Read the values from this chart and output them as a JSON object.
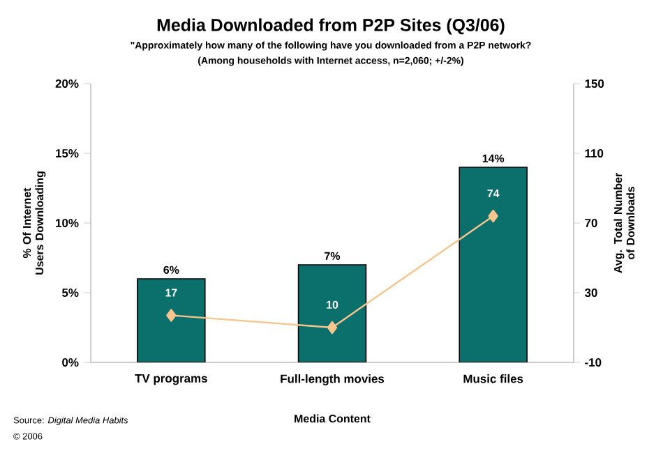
{
  "chart_data": {
    "type": "bar",
    "title": "Media Downloaded from P2P Sites (Q3/06)",
    "subtitle": "\"Approximately how many of the following have you downloaded from a P2P network?",
    "xlabel": "Media Content",
    "ylabel": "% Of Internet Users Downloading",
    "y2label": "Avg. Total Number of Downloads",
    "categories": [
      "TV programs",
      "Full-length movies",
      "Music files"
    ],
    "series": [
      {
        "color": "#0b6f6b",
        "values": [
          6,
          7,
          14
        ],
        "value_labels": [
          "6%",
          "7%",
          "14%"
        ]
      },
      {
        "type": "line",
        "axis": "y2",
        "color": "#f7c68f",
        "marker": "diamond",
        "values": [
          17,
          10,
          74
        ],
        "value_labels": [
          "17",
          "10",
          "74"
        ]
      }
    ],
    "ylim": [
      0,
      20
    ],
    "yticks": [
      {
        "value": 0,
        "label": "0%"
      },
      {
        "value": 5,
        "label": "5%"
      },
      {
        "value": 10,
        "label": "10%"
      },
      {
        "value": 15,
        "label": "15%"
      },
      {
        "value": 20,
        "label": "20%"
      }
    ],
    "y2lim": [
      -10,
      150
    ],
    "y2ticks": [
      -10,
      30,
      70,
      110,
      150
    ],
    "grid": false,
    "annotations": [
      "(Among households with Internet access, n=2,060; +/-2%)",
      "Source: *Digital Media Habits*",
      "© 2006"
    ]
  }
}
